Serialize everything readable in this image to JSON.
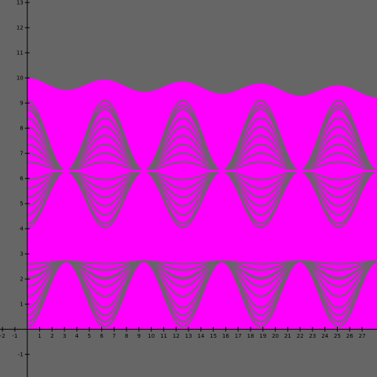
{
  "chart_data": {
    "type": "area",
    "title": "",
    "xlabel": "",
    "ylabel": "",
    "xlim": [
      -2.2,
      28.2
    ],
    "ylim": [
      -1.9,
      13.1
    ],
    "grid": false,
    "legend": "none",
    "x_ticks": [
      -2,
      -1,
      1,
      2,
      3,
      4,
      5,
      6,
      7,
      8,
      9,
      10,
      11,
      12,
      13,
      14,
      15,
      16,
      17,
      18,
      19,
      20,
      21,
      22,
      23,
      24,
      25,
      26,
      27
    ],
    "y_ticks": [
      -1,
      1,
      2,
      3,
      4,
      5,
      6,
      7,
      8,
      9,
      10,
      11,
      12,
      13
    ],
    "x_tick_labels": [
      "-2",
      "-1",
      "1",
      "2",
      "3",
      "4",
      "5",
      "6",
      "7",
      "8",
      "9",
      "10",
      "11",
      "12",
      "13",
      "14",
      "15",
      "16",
      "17",
      "18",
      "19",
      "20",
      "21",
      "22",
      "23",
      "24",
      "25",
      "26",
      "27"
    ],
    "y_tick_labels": [
      "-1",
      "1",
      "2",
      "3",
      "4",
      "5",
      "6",
      "7",
      "8",
      "9",
      "10",
      "11",
      "12",
      "13"
    ],
    "fill_region": {
      "x_start": 0,
      "x_end": 28.2,
      "y_bottom": 0,
      "period": 6.28,
      "upper_peak": 10.0,
      "upper_trough": 9.55
    },
    "series": [
      {
        "values": [
          0.1,
          0.35,
          0.65,
          1.0,
          1.4,
          1.85,
          2.15,
          2.4,
          2.6
        ]
      },
      {
        "values": [
          3.0,
          3.3,
          3.6,
          3.9,
          4.2,
          4.5
        ]
      },
      {
        "values": [
          6.3,
          6.3,
          6.3,
          6.3,
          6.3
        ]
      },
      {
        "values": [
          6.3,
          5.95,
          5.6,
          5.25,
          4.9,
          4.55,
          4.2
        ]
      },
      {
        "values": [
          6.3,
          6.65,
          7.0,
          7.35,
          7.7,
          8.05,
          8.4,
          8.75
        ]
      }
    ],
    "colors": {
      "background": "#666666",
      "fill": "#ff00ff",
      "axis": "#000000",
      "label": "#000000"
    }
  }
}
